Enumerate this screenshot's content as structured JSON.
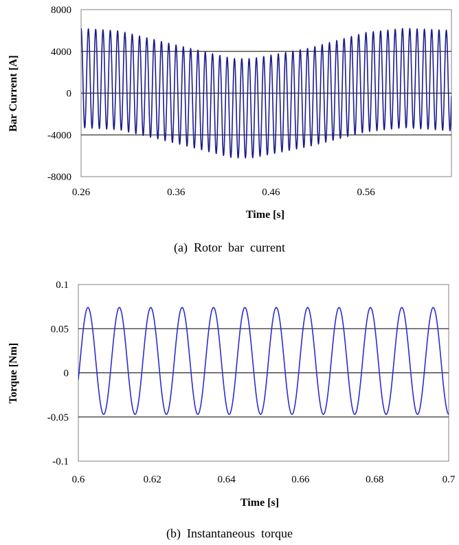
{
  "chart_data": [
    {
      "type": "line",
      "caption": "(a)  Rotor  bar  current",
      "xlabel": "Time [s]",
      "ylabel": "Bar Current [A]",
      "xlim": [
        0.26,
        0.65
      ],
      "ylim": [
        -8000,
        8000
      ],
      "xticks": [
        0.26,
        0.36,
        0.46,
        0.56
      ],
      "yticks": [
        -8000,
        -4000,
        0,
        4000,
        8000
      ],
      "xtick_labels": [
        "0.26",
        "0.36",
        "0.46",
        "0.56"
      ],
      "ytick_labels": [
        "-8000",
        "-4000",
        "0",
        "4000",
        "8000"
      ],
      "gridlines": [
        -4000,
        0,
        4000
      ],
      "grid": "horizontal",
      "line_color": "#1a1a8c",
      "series": [
        {
          "waveform": "amplitude-modulated sinusoid",
          "frequency_hz": 130,
          "x_start": 0.26,
          "x_end": 0.65,
          "upper_envelope": [
            [
              0.26,
              6200
            ],
            [
              0.3,
              5950
            ],
            [
              0.36,
              4600
            ],
            [
              0.42,
              3300
            ],
            [
              0.44,
              3300
            ],
            [
              0.5,
              4300
            ],
            [
              0.56,
              5800
            ],
            [
              0.6,
              6200
            ],
            [
              0.65,
              6000
            ]
          ],
          "lower_envelope": [
            [
              0.26,
              -3300
            ],
            [
              0.3,
              -3500
            ],
            [
              0.36,
              -4800
            ],
            [
              0.42,
              -6200
            ],
            [
              0.44,
              -6200
            ],
            [
              0.5,
              -5100
            ],
            [
              0.56,
              -3700
            ],
            [
              0.6,
              -3300
            ],
            [
              0.65,
              -3600
            ]
          ]
        }
      ]
    },
    {
      "type": "line",
      "caption": "(b)  Instantaneous  torque",
      "xlabel": "Time [s]",
      "ylabel": "Torque [Nm]",
      "xlim": [
        0.6,
        0.7
      ],
      "ylim": [
        -0.1,
        0.1
      ],
      "xticks": [
        0.6,
        0.62,
        0.64,
        0.66,
        0.68,
        0.7
      ],
      "yticks": [
        -0.1,
        -0.05,
        0,
        0.05,
        0.1
      ],
      "xtick_labels": [
        "0.6",
        "0.62",
        "0.64",
        "0.66",
        "0.68",
        "0.7"
      ],
      "ytick_labels": [
        "-0.1",
        "-0.05",
        "0",
        "0.05",
        "0.1"
      ],
      "gridlines": [
        -0.05,
        0,
        0.05
      ],
      "grid": "horizontal",
      "line_color": "#2b2bd0",
      "series": [
        {
          "waveform": "sinusoid",
          "frequency_hz": 118,
          "offset": 0.0135,
          "amplitude": 0.0605,
          "first_peak_x": 0.6026,
          "x_start": 0.6,
          "x_end": 0.7,
          "max": 0.074,
          "min": -0.047
        }
      ]
    }
  ]
}
